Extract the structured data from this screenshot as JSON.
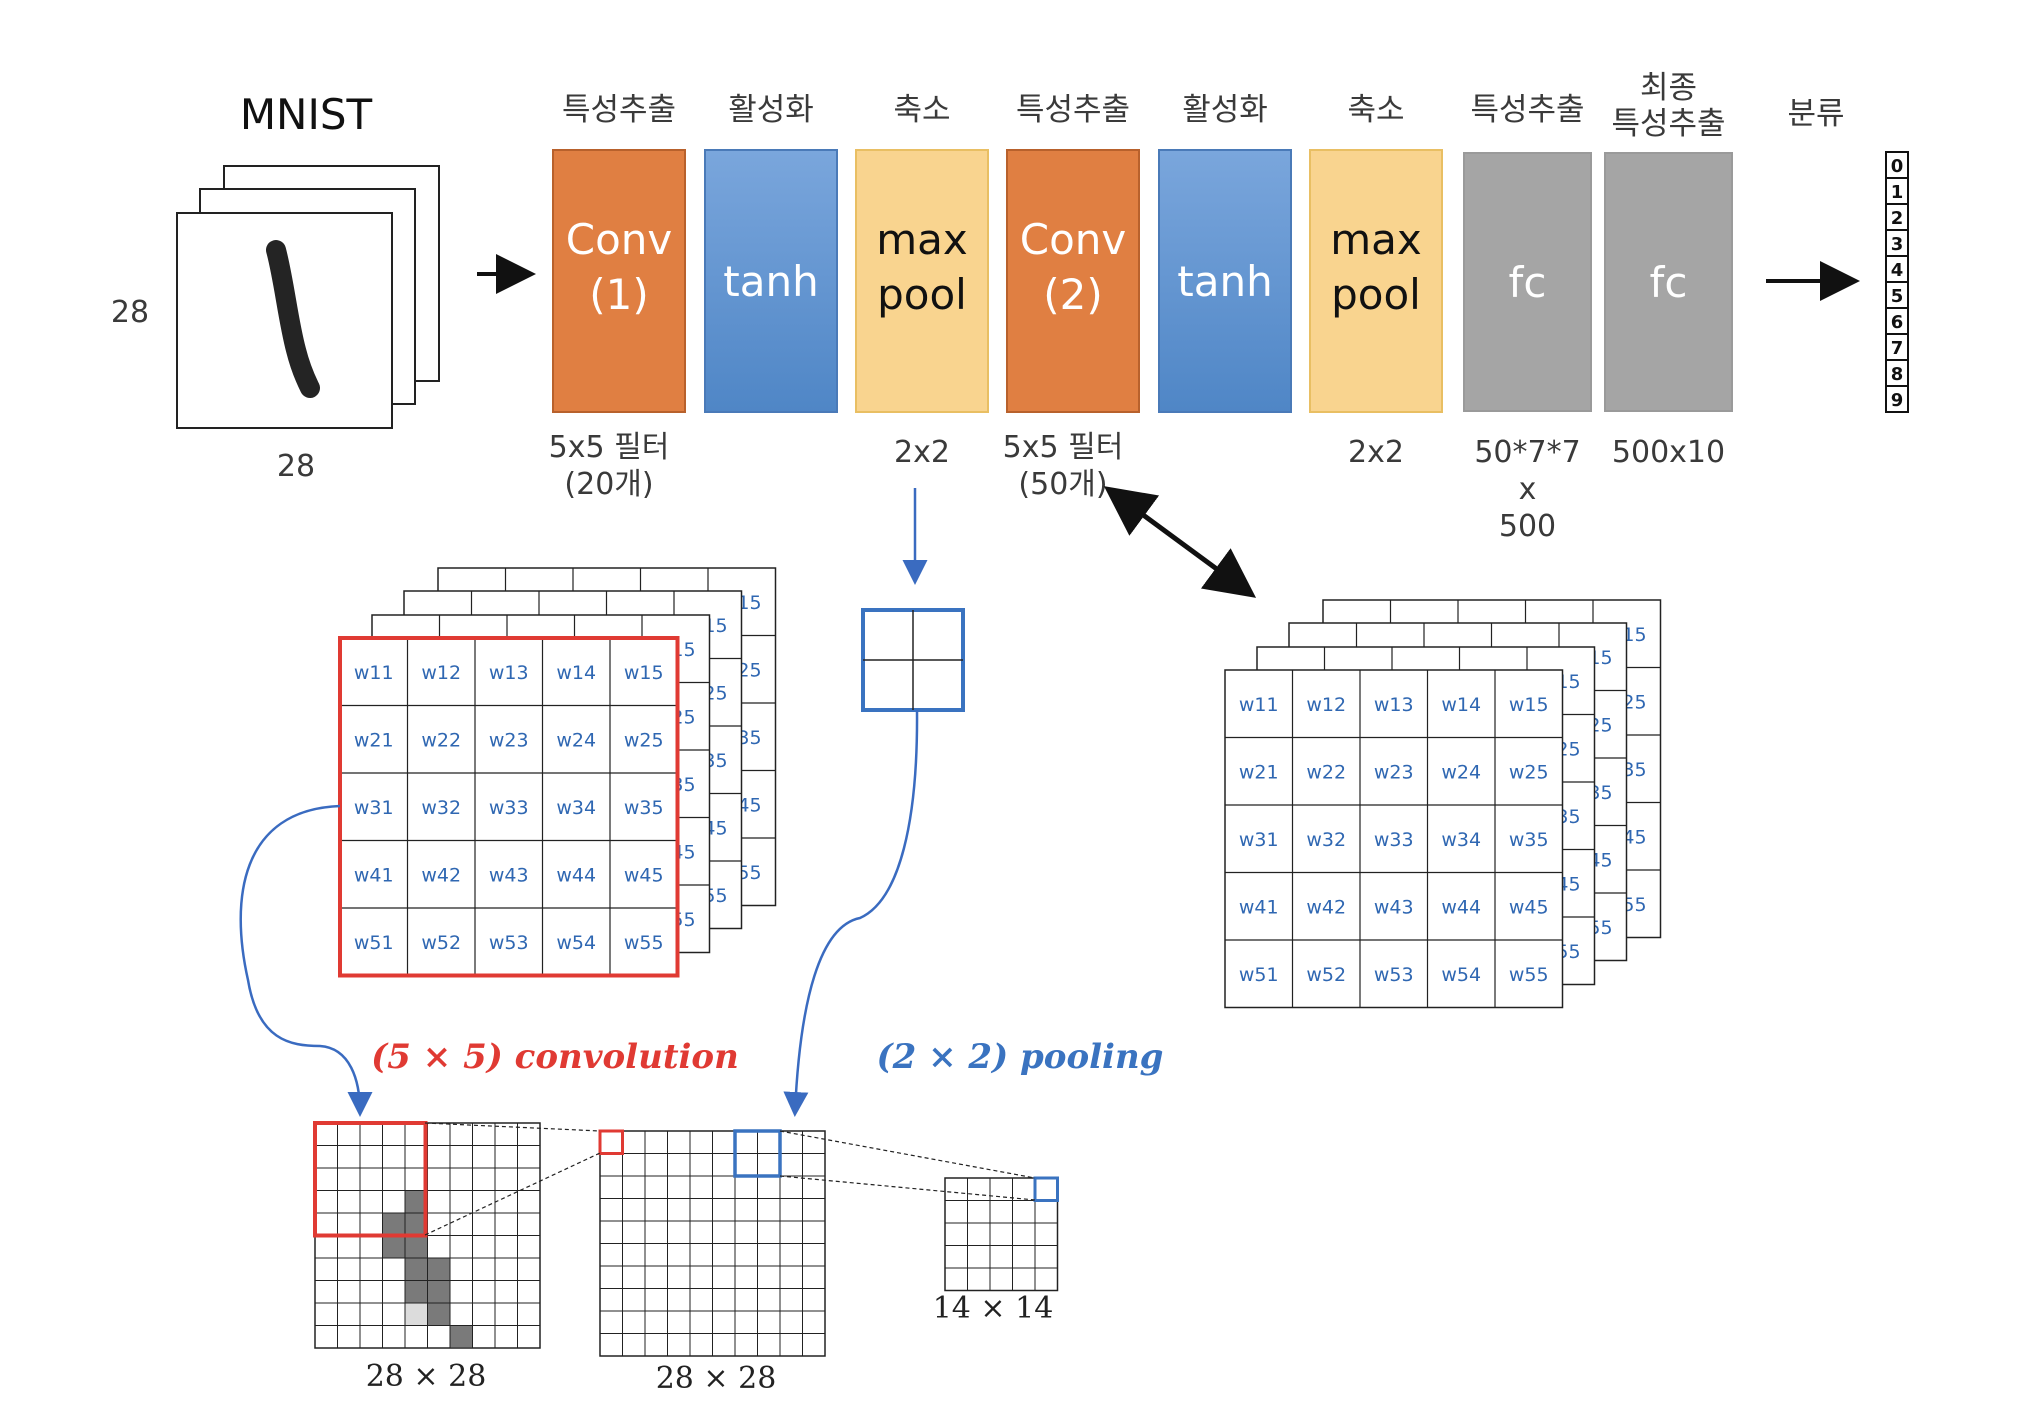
{
  "title": "MNIST",
  "input": {
    "height_label": "28",
    "width_label": "28"
  },
  "colors": {
    "conv": "#e07f42",
    "tanh": "#5b8fcf",
    "pool": "#f9d48f",
    "fc": "#a5a5a5",
    "conv_highlight": "#e03a33",
    "pool_highlight": "#3a73c0",
    "filter_text": "#2f67b2"
  },
  "stages": [
    {
      "header": "특성추출",
      "lines": [
        "Conv",
        "(1)"
      ],
      "type": "conv",
      "sub": [
        "5x5 필터",
        "(20개)"
      ]
    },
    {
      "header": "활성화",
      "lines": [
        "tanh"
      ],
      "type": "tanh",
      "sub": []
    },
    {
      "header": "축소",
      "lines": [
        "max",
        "pool"
      ],
      "type": "pool",
      "sub": [
        "2x2"
      ]
    },
    {
      "header": "특성추출",
      "lines": [
        "Conv",
        "(2)"
      ],
      "type": "conv",
      "sub": [
        "5x5 필터",
        "(50개)"
      ]
    },
    {
      "header": "활성화",
      "lines": [
        "tanh"
      ],
      "type": "tanh",
      "sub": []
    },
    {
      "header": "축소",
      "lines": [
        "max",
        "pool"
      ],
      "type": "pool",
      "sub": [
        "2x2"
      ]
    },
    {
      "header": "특성추출",
      "lines": [
        "fc"
      ],
      "type": "fc",
      "sub": [
        "50*7*7",
        "x",
        "500"
      ]
    },
    {
      "header": [
        "최종",
        "특성추출"
      ],
      "lines": [
        "fc"
      ],
      "type": "fc",
      "sub": [
        "500x10"
      ]
    }
  ],
  "classify_header": "분류",
  "output_classes": [
    "0",
    "1",
    "2",
    "3",
    "4",
    "5",
    "6",
    "7",
    "8",
    "9"
  ],
  "filter_weights": [
    [
      "w11",
      "w12",
      "w13",
      "w14",
      "w15"
    ],
    [
      "w21",
      "w22",
      "w23",
      "w24",
      "w25"
    ],
    [
      "w31",
      "w32",
      "w33",
      "w34",
      "w35"
    ],
    [
      "w41",
      "w42",
      "w43",
      "w44",
      "w45"
    ],
    [
      "w51",
      "w52",
      "w53",
      "w54",
      "w55"
    ]
  ],
  "conv_label": "(5 × 5) convolution",
  "pool_label": "(2 × 2) pooling",
  "grid_labels": [
    "28 × 28",
    "28 × 28",
    "14 × 14"
  ]
}
